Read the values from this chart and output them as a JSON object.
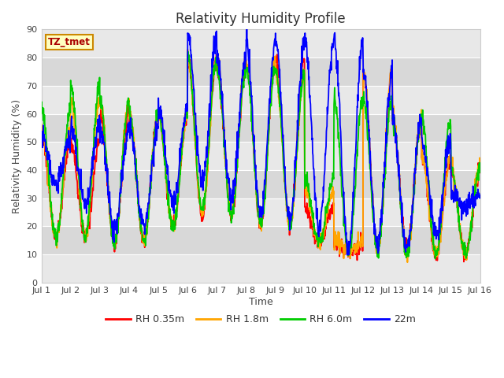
{
  "title": "Relativity Humidity Profile",
  "xlabel": "Time",
  "ylabel": "Relativity Humidity (%)",
  "ylim": [
    0,
    90
  ],
  "yticks": [
    0,
    10,
    20,
    30,
    40,
    50,
    60,
    70,
    80,
    90
  ],
  "xlim_start": 0,
  "xlim_end": 15,
  "xtick_labels": [
    "Jul 1",
    "Jul 2",
    "Jul 3",
    "Jul 4",
    "Jul 5",
    "Jul 6",
    "Jul 7",
    "Jul 8",
    "Jul 9",
    "Jul 10",
    "Jul 11",
    "Jul 12",
    "Jul 13",
    "Jul 14",
    "Jul 15",
    "Jul 16"
  ],
  "series_colors": [
    "#ff0000",
    "#ffa500",
    "#00cc00",
    "#0000ff"
  ],
  "series_labels": [
    "RH 0.35m",
    "RH 1.8m",
    "RH 6.0m",
    "22m"
  ],
  "legend_text": "TZ_tmet",
  "legend_text_color": "#aa0000",
  "legend_box_facecolor": "#ffffc0",
  "legend_box_edgecolor": "#cc8800",
  "plot_bg_color": "#e8e8e8",
  "grid_color": "#ffffff",
  "title_fontsize": 12,
  "label_fontsize": 9,
  "tick_fontsize": 8,
  "line_width": 1.3,
  "n_points": 1440,
  "days": 15,
  "band_colors": [
    "#e8e8e8",
    "#d8d8d8"
  ]
}
